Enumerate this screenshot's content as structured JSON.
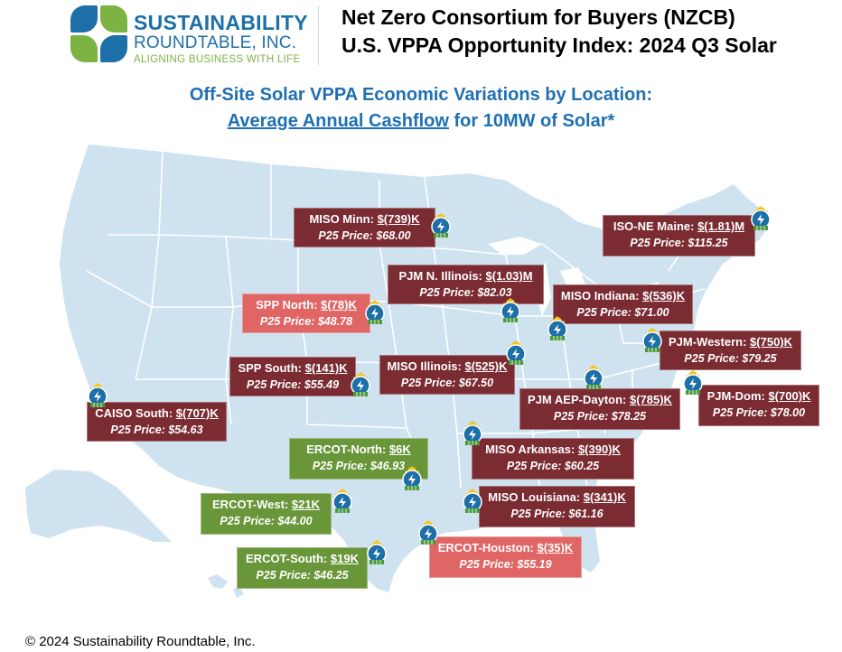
{
  "logo": {
    "name_line1": "SUSTAINABILITY",
    "name_line2": "ROUNDTABLE, INC.",
    "tagline": "ALIGNING BUSINESS WITH LIFE"
  },
  "header": {
    "title_line1": "Net Zero Consortium for Buyers (NZCB)",
    "title_line2": "U.S. VPPA Opportunity Index: 2024 Q3 Solar"
  },
  "subtitle": {
    "line1": "Off-Site Solar VPPA Economic Variations by Location:",
    "line2_underlined": "Average Annual Cashflow",
    "line2_rest": " for 10MW of Solar*"
  },
  "colors": {
    "dark_red": "#7b2b32",
    "light_red": "#e06666",
    "green": "#6a963a",
    "map_land": "#cfe2f0",
    "map_border": "#ffffff",
    "title_blue": "#1f6fb2"
  },
  "markets": [
    {
      "id": "miso-minn",
      "name": "MISO Minn:",
      "value": "$(739)K",
      "price": "P25 Price: $68.00",
      "color": "dark_red"
    },
    {
      "id": "iso-ne-maine",
      "name": "ISO-NE Maine:",
      "value": "$(1.81)M",
      "price": "P25 Price: $115.25",
      "color": "dark_red"
    },
    {
      "id": "pjm-n-illinois",
      "name": "PJM N. Illinois:",
      "value": "$(1.03)M",
      "price": "P25 Price: $82.03",
      "color": "dark_red"
    },
    {
      "id": "spp-north",
      "name": "SPP North:",
      "value": "$(78)K",
      "price": "P25 Price: $48.78",
      "color": "light_red"
    },
    {
      "id": "miso-indiana",
      "name": "MISO Indiana:",
      "value": "$(536)K",
      "price": "P25 Price: $71.00",
      "color": "dark_red"
    },
    {
      "id": "pjm-western",
      "name": "PJM-Western:",
      "value": "$(750)K",
      "price": "P25 Price: $79.25",
      "color": "dark_red"
    },
    {
      "id": "spp-south",
      "name": "SPP South:",
      "value": "$(141)K",
      "price": "P25 Price: $55.49",
      "color": "dark_red"
    },
    {
      "id": "miso-illinois",
      "name": "MISO Illinois:",
      "value": "$(525)K",
      "price": "P25 Price: $67.50",
      "color": "dark_red"
    },
    {
      "id": "pjm-aep-dayton",
      "name": "PJM AEP-Dayton:",
      "value": "$(785)K",
      "price": "P25 Price: $78.25",
      "color": "dark_red"
    },
    {
      "id": "pjm-dom",
      "name": "PJM-Dom:",
      "value": "$(700)K",
      "price": "P25 Price: $78.00",
      "color": "dark_red"
    },
    {
      "id": "caiso-south",
      "name": "CAISO South:",
      "value": "$(707)K",
      "price": "P25 Price: $54.63",
      "color": "dark_red"
    },
    {
      "id": "ercot-north",
      "name": "ERCOT-North:",
      "value": "$6K",
      "price": "P25 Price: $46.93",
      "color": "green"
    },
    {
      "id": "miso-arkansas",
      "name": "MISO Arkansas:",
      "value": "$(390)K",
      "price": "P25 Price: $60.25",
      "color": "dark_red"
    },
    {
      "id": "ercot-west",
      "name": "ERCOT-West:",
      "value": "$21K",
      "price": "P25 Price: $44.00",
      "color": "green"
    },
    {
      "id": "miso-louisiana",
      "name": "MISO Louisiana:",
      "value": "$(341)K",
      "price": "P25 Price: $61.16",
      "color": "dark_red"
    },
    {
      "id": "ercot-houston",
      "name": "ERCOT-Houston:",
      "value": "$(35)K",
      "price": "P25 Price: $55.19",
      "color": "light_red"
    },
    {
      "id": "ercot-south",
      "name": "ERCOT-South:",
      "value": "$19K",
      "price": "P25 Price: $46.25",
      "color": "green"
    }
  ],
  "pin_icon": "solar-panel-pin-icon",
  "footer": {
    "copyright": "© 2024 Sustainability Roundtable, Inc."
  }
}
